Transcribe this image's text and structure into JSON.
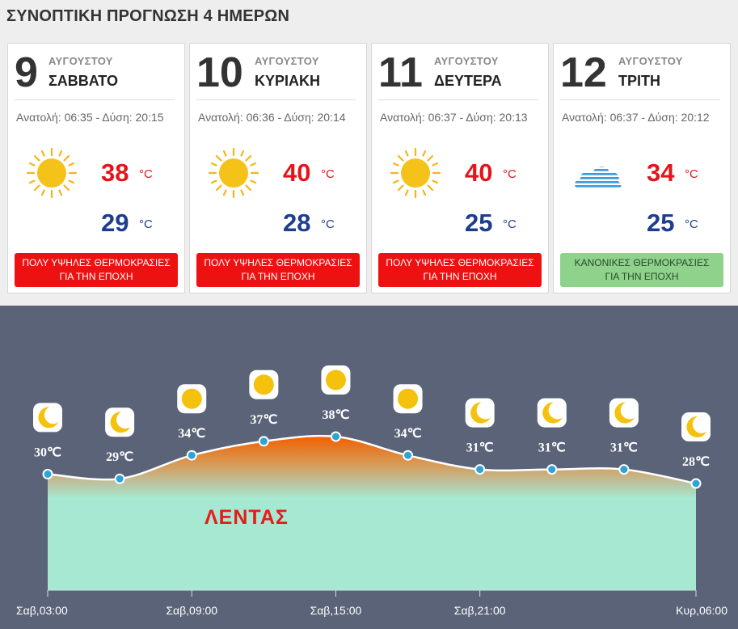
{
  "header": {
    "title": "ΣΥΝΟΠΤΙΚΗ ΠΡΟΓΝΩΣΗ 4 ΗΜΕΡΩΝ"
  },
  "days": [
    {
      "day": "9",
      "month": "ΑΥΓΟΥΣΤΟΥ",
      "weekday": "ΣΑΒΒΑΤΟ",
      "sun": "Ανατολή: 06:35 - Δύση: 20:15",
      "icon": "sun-icon",
      "tmax": "38",
      "tmin": "29",
      "unit": "°C",
      "badge": [
        "ΠΟΛΥ ΥΨΗΛΕΣ ΘΕΡΜΟΚΡΑΣΙΕΣ",
        "ΓΙΑ ΤΗΝ ΕΠΟΧΗ"
      ],
      "badge_type": "hot"
    },
    {
      "day": "10",
      "month": "ΑΥΓΟΥΣΤΟΥ",
      "weekday": "ΚΥΡΙΑΚΗ",
      "sun": "Ανατολή: 06:36 - Δύση: 20:14",
      "icon": "sun-icon",
      "tmax": "40",
      "tmin": "28",
      "unit": "°C",
      "badge": [
        "ΠΟΛΥ ΥΨΗΛΕΣ ΘΕΡΜΟΚΡΑΣΙΕΣ",
        "ΓΙΑ ΤΗΝ ΕΠΟΧΗ"
      ],
      "badge_type": "hot"
    },
    {
      "day": "11",
      "month": "ΑΥΓΟΥΣΤΟΥ",
      "weekday": "ΔΕΥΤΕΡΑ",
      "sun": "Ανατολή: 06:37 - Δύση: 20:13",
      "icon": "sun-icon",
      "tmax": "40",
      "tmin": "25",
      "unit": "°C",
      "badge": [
        "ΠΟΛΥ ΥΨΗΛΕΣ ΘΕΡΜΟΚΡΑΣΙΕΣ",
        "ΓΙΑ ΤΗΝ ΕΠΟΧΗ"
      ],
      "badge_type": "hot"
    },
    {
      "day": "12",
      "month": "ΑΥΓΟΥΣΤΟΥ",
      "weekday": "ΤΡΙΤΗ",
      "sun": "Ανατολή: 06:37 - Δύση: 20:12",
      "icon": "cloud-icon",
      "tmax": "34",
      "tmin": "25",
      "unit": "°C",
      "badge": [
        "ΚΑΝΟΝΙΚΕΣ ΘΕΡΜΟΚΡΑΣΙΕΣ",
        "ΓΙΑ ΤΗΝ ΕΠΟΧΗ"
      ],
      "badge_type": "normal"
    }
  ],
  "colors": {
    "hot": "#ee1111",
    "normal": "#8fd28c",
    "tmax": "#e4151a",
    "tmin": "#1e3d8f",
    "chart_bg": "#5a6377",
    "point": "#2ea3d6"
  },
  "chart_data": {
    "type": "area",
    "location_label": "ΛΕΝΤΑΣ",
    "unit": "℃",
    "x_ticks": [
      "Σαβ,03:00",
      "Σαβ,09:00",
      "Σαβ,15:00",
      "Σαβ,21:00",
      "Κυρ,06:00"
    ],
    "points": [
      {
        "time": "Σαβ,03:00",
        "t": 30,
        "label": "30℃",
        "icon": "moon-icon"
      },
      {
        "time": "Σαβ,06:00",
        "t": 29,
        "label": "29℃",
        "icon": "moon-icon"
      },
      {
        "time": "Σαβ,09:00",
        "t": 34,
        "label": "34℃",
        "icon": "sun-icon"
      },
      {
        "time": "Σαβ,12:00",
        "t": 37,
        "label": "37℃",
        "icon": "sun-icon"
      },
      {
        "time": "Σαβ,15:00",
        "t": 38,
        "label": "38℃",
        "icon": "sun-icon"
      },
      {
        "time": "Σαβ,18:00",
        "t": 34,
        "label": "34℃",
        "icon": "sun-icon"
      },
      {
        "time": "Σαβ,21:00",
        "t": 31,
        "label": "31℃",
        "icon": "moon-icon"
      },
      {
        "time": "Κυρ,00:00",
        "t": 31,
        "label": "31℃",
        "icon": "moon-icon"
      },
      {
        "time": "Κυρ,03:00",
        "t": 31,
        "label": "31℃",
        "icon": "moon-icon"
      },
      {
        "time": "Κυρ,06:00",
        "t": 28,
        "label": "28℃",
        "icon": "moon-icon"
      }
    ]
  }
}
